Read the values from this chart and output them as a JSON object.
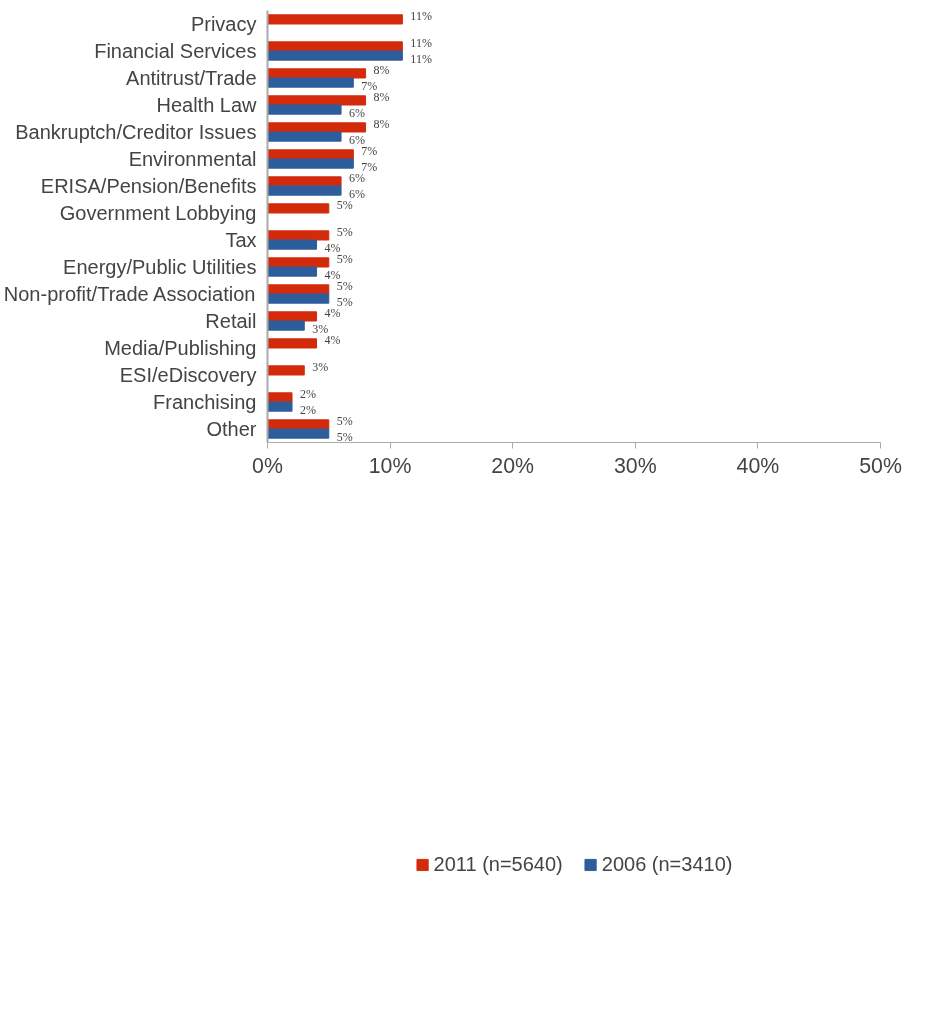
{
  "chart_data": {
    "type": "bar",
    "orientation": "horizontal",
    "categories": [
      "Privacy",
      "Financial Services",
      "Antitrust/Trade",
      "Health Law",
      "Bankruptch/Creditor Issues",
      "Environmental",
      "ERISA/Pension/Benefits",
      "Government Lobbying",
      "Tax",
      "Energy/Public Utilities",
      "Non-profit/Trade Association",
      "Retail",
      "Media/Publishing",
      "ESI/eDiscovery",
      "Franchising",
      "Other"
    ],
    "series": [
      {
        "name": "2011 (n=5640)",
        "color": "#d42a0c",
        "values": [
          11,
          11,
          8,
          8,
          8,
          7,
          6,
          5,
          5,
          5,
          5,
          4,
          4,
          3,
          2,
          5
        ],
        "value_labels": [
          "11%",
          "11%",
          "8%",
          "8%",
          "8%",
          "7%",
          "6%",
          "5%",
          "5%",
          "5%",
          "5%",
          "4%",
          "4%",
          "3%",
          "2%",
          "5%"
        ]
      },
      {
        "name": "2006 (n=3410)",
        "color": "#2d5d9b",
        "values": [
          null,
          11,
          7,
          6,
          6,
          7,
          6,
          null,
          4,
          4,
          5,
          3,
          null,
          null,
          2,
          5
        ],
        "value_labels": [
          null,
          "11%",
          "7%",
          "6%",
          "6%",
          "7%",
          "6%",
          null,
          "4%",
          "4%",
          "5%",
          "3%",
          null,
          null,
          "2%",
          "5%"
        ]
      }
    ],
    "xlim": [
      0,
      50
    ],
    "xticks": [
      {
        "value": 0,
        "label": "0%"
      },
      {
        "value": 10,
        "label": "10%"
      },
      {
        "value": 20,
        "label": "20%"
      },
      {
        "value": 30,
        "label": "30%"
      },
      {
        "value": 40,
        "label": "40%"
      },
      {
        "value": 50,
        "label": "50%"
      }
    ],
    "grid": false,
    "legend": "bottom"
  }
}
